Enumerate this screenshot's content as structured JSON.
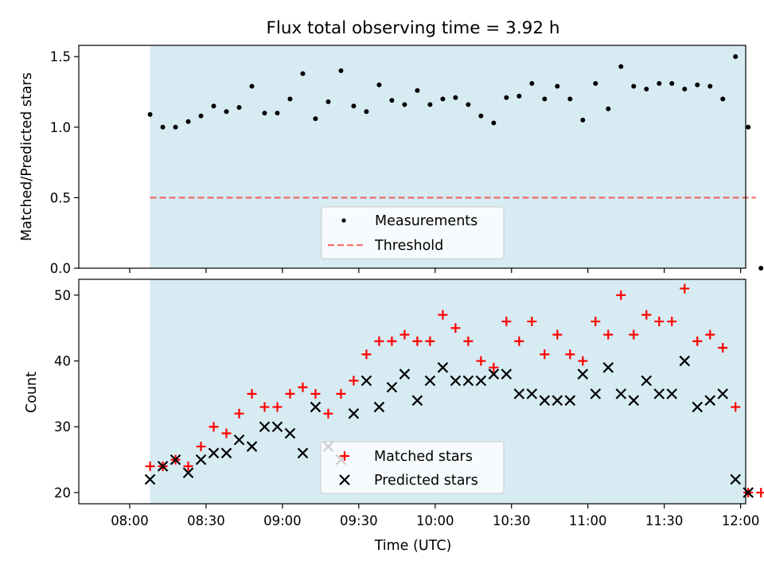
{
  "title": "Flux total observing time = 3.92 h",
  "colors": {
    "band": "#add8e6",
    "matched": "#ff0000",
    "predicted": "#000000",
    "measure": "#000000",
    "threshold": "#ff0000"
  },
  "chart_data": [
    {
      "type": "scatter",
      "panel": "top",
      "ylabel": "Matched/Predicted stars",
      "ylim": [
        0,
        1.58
      ],
      "yticks": [
        0.0,
        0.5,
        1.0,
        1.5
      ],
      "ytick_labels": [
        "0.0",
        "0.5",
        "1.0",
        "1.5"
      ],
      "xlim_min": [
        -20,
        242
      ],
      "observing_window_min": [
        8,
        242
      ],
      "threshold": 0.5,
      "threshold_range_min": [
        8,
        246
      ],
      "legend": [
        "Measurements",
        "Threshold"
      ],
      "series": [
        {
          "name": "Measurements",
          "x_min": [
            8,
            13,
            18,
            23,
            28,
            33,
            38,
            43,
            48,
            53,
            58,
            63,
            68,
            73,
            78,
            83,
            88,
            93,
            98,
            103,
            108,
            113,
            118,
            123,
            128,
            133,
            138,
            143,
            148,
            153,
            158,
            163,
            168,
            173,
            178,
            183,
            188,
            193,
            198,
            203,
            208,
            213,
            218,
            223,
            228,
            233,
            238,
            243,
            248
          ],
          "y": [
            1.09,
            1.0,
            1.0,
            1.04,
            1.08,
            1.15,
            1.11,
            1.14,
            1.29,
            1.1,
            1.1,
            1.2,
            1.38,
            1.06,
            1.18,
            1.4,
            1.15,
            1.11,
            1.3,
            1.19,
            1.16,
            1.26,
            1.16,
            1.2,
            1.21,
            1.16,
            1.08,
            1.03,
            1.21,
            1.22,
            1.31,
            1.2,
            1.29,
            1.2,
            1.05,
            1.31,
            1.13,
            1.43,
            1.29,
            1.27,
            1.31,
            1.31,
            1.27,
            1.3,
            1.29,
            1.2,
            1.5,
            1.0,
            0.0
          ]
        }
      ]
    },
    {
      "type": "scatter",
      "panel": "bottom",
      "xlabel": "Time (UTC)",
      "ylabel": "Count",
      "ylim": [
        18.3,
        52.4
      ],
      "yticks": [
        20,
        30,
        40,
        50
      ],
      "ytick_labels": [
        "20",
        "30",
        "40",
        "50"
      ],
      "xticks_min": [
        0,
        30,
        60,
        90,
        120,
        150,
        180,
        210,
        240
      ],
      "xtick_labels": [
        "08:00",
        "08:30",
        "09:00",
        "09:30",
        "10:00",
        "10:30",
        "11:00",
        "11:30",
        "12:00"
      ],
      "legend": [
        "Matched stars",
        "Predicted stars"
      ],
      "series": [
        {
          "name": "Matched stars",
          "x_min": [
            8,
            13,
            18,
            23,
            28,
            33,
            38,
            43,
            48,
            53,
            58,
            63,
            68,
            73,
            78,
            83,
            88,
            93,
            98,
            103,
            108,
            113,
            118,
            123,
            128,
            133,
            138,
            143,
            148,
            153,
            158,
            163,
            168,
            173,
            178,
            183,
            188,
            193,
            198,
            203,
            208,
            213,
            218,
            223,
            228,
            233,
            238,
            243,
            248
          ],
          "y": [
            24,
            24,
            25,
            24,
            27,
            30,
            29,
            32,
            35,
            33,
            33,
            35,
            36,
            35,
            32,
            35,
            37,
            41,
            43,
            43,
            44,
            43,
            43,
            47,
            45,
            43,
            40,
            39,
            46,
            43,
            46,
            41,
            44,
            41,
            40,
            46,
            44,
            50,
            44,
            47,
            46,
            46,
            51,
            43,
            44,
            42,
            33,
            20,
            20
          ]
        },
        {
          "name": "Predicted stars",
          "x_min": [
            8,
            13,
            18,
            23,
            28,
            33,
            38,
            43,
            48,
            53,
            58,
            63,
            68,
            73,
            78,
            83,
            88,
            93,
            98,
            103,
            108,
            113,
            118,
            123,
            128,
            133,
            138,
            143,
            148,
            153,
            158,
            163,
            168,
            173,
            178,
            183,
            188,
            193,
            198,
            203,
            208,
            213,
            218,
            223,
            228,
            233,
            238,
            243
          ],
          "y": [
            22,
            24,
            25,
            23,
            25,
            26,
            26,
            28,
            27,
            30,
            30,
            29,
            26,
            33,
            27,
            25,
            32,
            37,
            33,
            36,
            38,
            34,
            37,
            39,
            37,
            37,
            37,
            38,
            38,
            35,
            35,
            34,
            34,
            34,
            38,
            35,
            39,
            35,
            34,
            37,
            35,
            35,
            40,
            33,
            34,
            35,
            22,
            20
          ]
        }
      ]
    }
  ]
}
